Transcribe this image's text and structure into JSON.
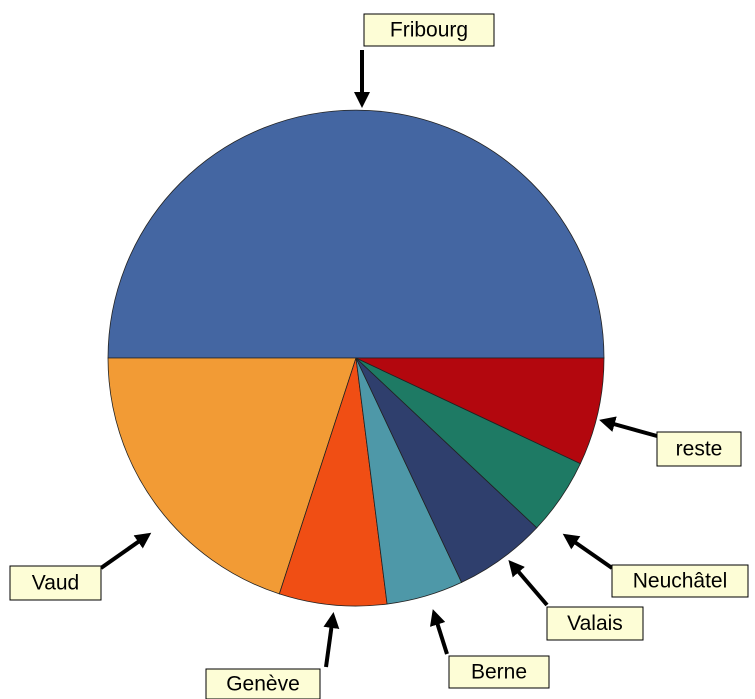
{
  "chart_data": {
    "type": "pie",
    "categories": [
      "Fribourg",
      "Vaud",
      "Genève",
      "Berne",
      "Valais",
      "Neuchâtel",
      "reste"
    ],
    "values": [
      50,
      20,
      7,
      5,
      6,
      5,
      7
    ],
    "colors": [
      "#4466a2",
      "#f29b35",
      "#f04e14",
      "#4e98a8",
      "#2f3f6d",
      "#1e7a64",
      "#b3070e"
    ]
  }
}
